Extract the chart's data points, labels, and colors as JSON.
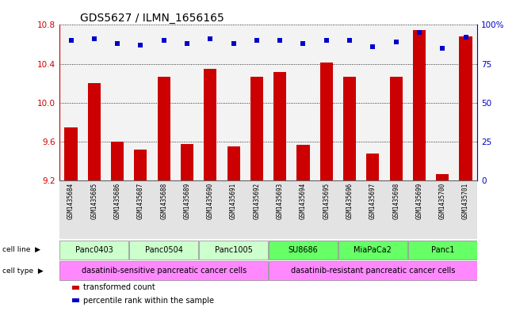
{
  "title": "GDS5627 / ILMN_1656165",
  "samples": [
    "GSM1435684",
    "GSM1435685",
    "GSM1435686",
    "GSM1435687",
    "GSM1435688",
    "GSM1435689",
    "GSM1435690",
    "GSM1435691",
    "GSM1435692",
    "GSM1435693",
    "GSM1435694",
    "GSM1435695",
    "GSM1435696",
    "GSM1435697",
    "GSM1435698",
    "GSM1435699",
    "GSM1435700",
    "GSM1435701"
  ],
  "bar_values": [
    9.75,
    10.2,
    9.6,
    9.52,
    10.27,
    9.58,
    10.35,
    9.55,
    10.27,
    10.32,
    9.57,
    10.41,
    10.27,
    9.48,
    10.27,
    10.75,
    9.27,
    10.68
  ],
  "percentile_values": [
    90,
    91,
    88,
    87,
    90,
    88,
    91,
    88,
    90,
    90,
    88,
    90,
    90,
    86,
    89,
    95,
    85,
    92
  ],
  "ylim_left": [
    9.2,
    10.8
  ],
  "ylim_right": [
    0,
    100
  ],
  "yticks_left": [
    9.2,
    9.6,
    10.0,
    10.4,
    10.8
  ],
  "yticks_right": [
    0,
    25,
    50,
    75,
    100
  ],
  "bar_color": "#cc0000",
  "dot_color": "#0000cc",
  "cell_lines": [
    {
      "name": "Panc0403",
      "start": 0,
      "end": 2,
      "color": "#ccffcc"
    },
    {
      "name": "Panc0504",
      "start": 3,
      "end": 5,
      "color": "#ccffcc"
    },
    {
      "name": "Panc1005",
      "start": 6,
      "end": 8,
      "color": "#ccffcc"
    },
    {
      "name": "SU8686",
      "start": 9,
      "end": 11,
      "color": "#66ff66"
    },
    {
      "name": "MiaPaCa2",
      "start": 12,
      "end": 14,
      "color": "#66ff66"
    },
    {
      "name": "Panc1",
      "start": 15,
      "end": 17,
      "color": "#66ff66"
    }
  ],
  "cell_types": [
    {
      "name": "dasatinib-sensitive pancreatic cancer cells",
      "start": 0,
      "end": 8,
      "color": "#ff88ff"
    },
    {
      "name": "dasatinib-resistant pancreatic cancer cells",
      "start": 9,
      "end": 17,
      "color": "#ff88ff"
    }
  ],
  "legend_items": [
    {
      "label": "transformed count",
      "color": "#cc0000"
    },
    {
      "label": "percentile rank within the sample",
      "color": "#0000cc"
    }
  ],
  "background_color": "#ffffff",
  "axis_color_left": "#cc0000",
  "axis_color_right": "#0000cc",
  "spine_color": "#000000"
}
